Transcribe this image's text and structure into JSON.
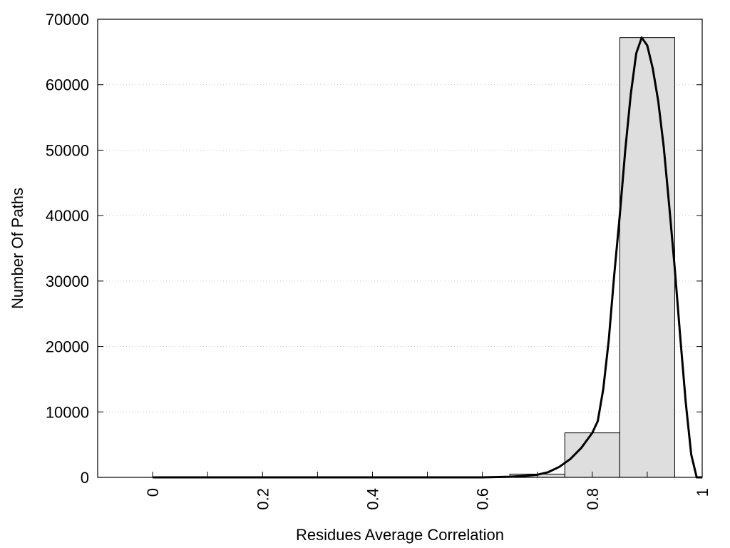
{
  "chart_data": {
    "type": "bar",
    "xlabel": "Residues Average Correlation",
    "ylabel": "Number Of Paths",
    "xlim": [
      -0.1,
      1.0
    ],
    "ylim": [
      0,
      70000
    ],
    "xticks": [
      0,
      0.2,
      0.4,
      0.6,
      0.8,
      1
    ],
    "xtick_labels": [
      "0",
      "0.2",
      "0.4",
      "0.6",
      "0.8",
      "1"
    ],
    "yticks": [
      0,
      10000,
      20000,
      30000,
      40000,
      50000,
      60000,
      70000
    ],
    "ytick_labels": [
      "0",
      "10000",
      "20000",
      "30000",
      "40000",
      "50000",
      "60000",
      "70000"
    ],
    "grid": "horizontal dotted",
    "bars": [
      {
        "x0": 0.0,
        "x1": 0.05,
        "value": 0
      },
      {
        "x0": 0.05,
        "x1": 0.15,
        "value": 0
      },
      {
        "x0": 0.15,
        "x1": 0.25,
        "value": 0
      },
      {
        "x0": 0.25,
        "x1": 0.35,
        "value": 0
      },
      {
        "x0": 0.35,
        "x1": 0.45,
        "value": 0
      },
      {
        "x0": 0.45,
        "x1": 0.55,
        "value": 0
      },
      {
        "x0": 0.55,
        "x1": 0.65,
        "value": 0
      },
      {
        "x0": 0.65,
        "x1": 0.75,
        "value": 500
      },
      {
        "x0": 0.75,
        "x1": 0.85,
        "value": 6800
      },
      {
        "x0": 0.85,
        "x1": 0.95,
        "value": 67200
      }
    ],
    "fit_curve": {
      "x": [
        0.0,
        0.1,
        0.2,
        0.3,
        0.4,
        0.5,
        0.6,
        0.65,
        0.68,
        0.7,
        0.72,
        0.74,
        0.76,
        0.78,
        0.8,
        0.81,
        0.82,
        0.83,
        0.84,
        0.85,
        0.86,
        0.87,
        0.88,
        0.89,
        0.9,
        0.91,
        0.92,
        0.93,
        0.94,
        0.95,
        0.96,
        0.97,
        0.98,
        0.99,
        1.0
      ],
      "y": [
        0,
        0,
        0,
        0,
        0,
        0,
        0,
        100,
        250,
        400,
        800,
        1600,
        2800,
        4500,
        6800,
        8600,
        13500,
        21000,
        31000,
        40000,
        50000,
        58500,
        64800,
        67200,
        66000,
        62500,
        57500,
        50500,
        41500,
        32000,
        21500,
        11500,
        3500,
        0,
        0
      ]
    }
  }
}
